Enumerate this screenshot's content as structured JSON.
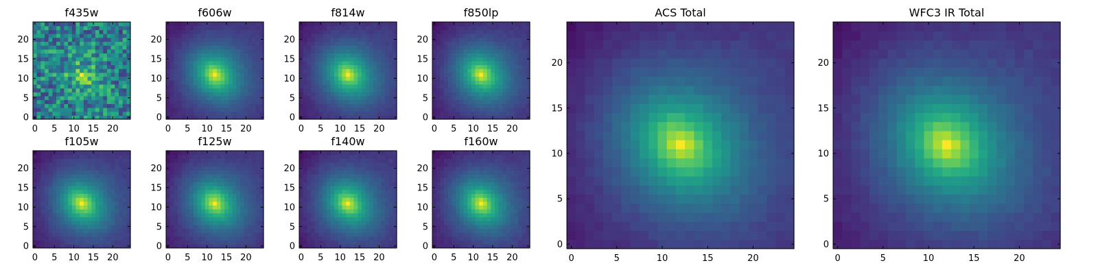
{
  "colormap": "viridis",
  "chart_data": [
    {
      "type": "heatmap",
      "title": "f435w",
      "xticks": [
        0,
        5,
        10,
        15,
        20
      ],
      "yticks": [
        0,
        5,
        10,
        15,
        20
      ],
      "xlim": [
        -0.5,
        24.5
      ],
      "ylim": [
        -0.5,
        24.5
      ],
      "grid_size": 25,
      "peak_pixel": [
        12,
        11
      ],
      "noisy": true
    },
    {
      "type": "heatmap",
      "title": "f606w",
      "xticks": [
        0,
        5,
        10,
        15,
        20
      ],
      "yticks": [
        0,
        5,
        10,
        15,
        20
      ],
      "xlim": [
        -0.5,
        24.5
      ],
      "ylim": [
        -0.5,
        24.5
      ],
      "grid_size": 25,
      "peak_pixel": [
        12,
        11
      ],
      "noisy": false
    },
    {
      "type": "heatmap",
      "title": "f814w",
      "xticks": [
        0,
        5,
        10,
        15,
        20
      ],
      "yticks": [
        0,
        5,
        10,
        15,
        20
      ],
      "xlim": [
        -0.5,
        24.5
      ],
      "ylim": [
        -0.5,
        24.5
      ],
      "grid_size": 25,
      "peak_pixel": [
        12,
        11
      ],
      "noisy": false
    },
    {
      "type": "heatmap",
      "title": "f850lp",
      "xticks": [
        0,
        5,
        10,
        15,
        20
      ],
      "yticks": [
        0,
        5,
        10,
        15,
        20
      ],
      "xlim": [
        -0.5,
        24.5
      ],
      "ylim": [
        -0.5,
        24.5
      ],
      "grid_size": 25,
      "peak_pixel": [
        12,
        11
      ],
      "noisy": false
    },
    {
      "type": "heatmap",
      "title": "f105w",
      "xticks": [
        0,
        5,
        10,
        15,
        20
      ],
      "yticks": [
        0,
        5,
        10,
        15,
        20
      ],
      "xlim": [
        -0.5,
        24.5
      ],
      "ylim": [
        -0.5,
        24.5
      ],
      "grid_size": 25,
      "peak_pixel": [
        12,
        11
      ],
      "noisy": false
    },
    {
      "type": "heatmap",
      "title": "f125w",
      "xticks": [
        0,
        5,
        10,
        15,
        20
      ],
      "yticks": [
        0,
        5,
        10,
        15,
        20
      ],
      "xlim": [
        -0.5,
        24.5
      ],
      "ylim": [
        -0.5,
        24.5
      ],
      "grid_size": 25,
      "peak_pixel": [
        12,
        11
      ],
      "noisy": false
    },
    {
      "type": "heatmap",
      "title": "f140w",
      "xticks": [
        0,
        5,
        10,
        15,
        20
      ],
      "yticks": [
        0,
        5,
        10,
        15,
        20
      ],
      "xlim": [
        -0.5,
        24.5
      ],
      "ylim": [
        -0.5,
        24.5
      ],
      "grid_size": 25,
      "peak_pixel": [
        12,
        11
      ],
      "noisy": false
    },
    {
      "type": "heatmap",
      "title": "f160w",
      "xticks": [
        0,
        5,
        10,
        15,
        20
      ],
      "yticks": [
        0,
        5,
        10,
        15,
        20
      ],
      "xlim": [
        -0.5,
        24.5
      ],
      "ylim": [
        -0.5,
        24.5
      ],
      "grid_size": 25,
      "peak_pixel": [
        12,
        11
      ],
      "noisy": false
    },
    {
      "type": "heatmap",
      "title": "ACS Total",
      "xticks": [
        0,
        5,
        10,
        15,
        20
      ],
      "yticks": [
        0,
        5,
        10,
        15,
        20
      ],
      "xlim": [
        -0.5,
        24.5
      ],
      "ylim": [
        -0.5,
        24.5
      ],
      "grid_size": 25,
      "peak_pixel": [
        12,
        11
      ],
      "noisy": false
    },
    {
      "type": "heatmap",
      "title": "WFC3 IR Total",
      "xticks": [
        0,
        5,
        10,
        15,
        20
      ],
      "yticks": [
        0,
        5,
        10,
        15,
        20
      ],
      "xlim": [
        -0.5,
        24.5
      ],
      "ylim": [
        -0.5,
        24.5
      ],
      "grid_size": 25,
      "peak_pixel": [
        12,
        11
      ],
      "noisy": false
    }
  ]
}
